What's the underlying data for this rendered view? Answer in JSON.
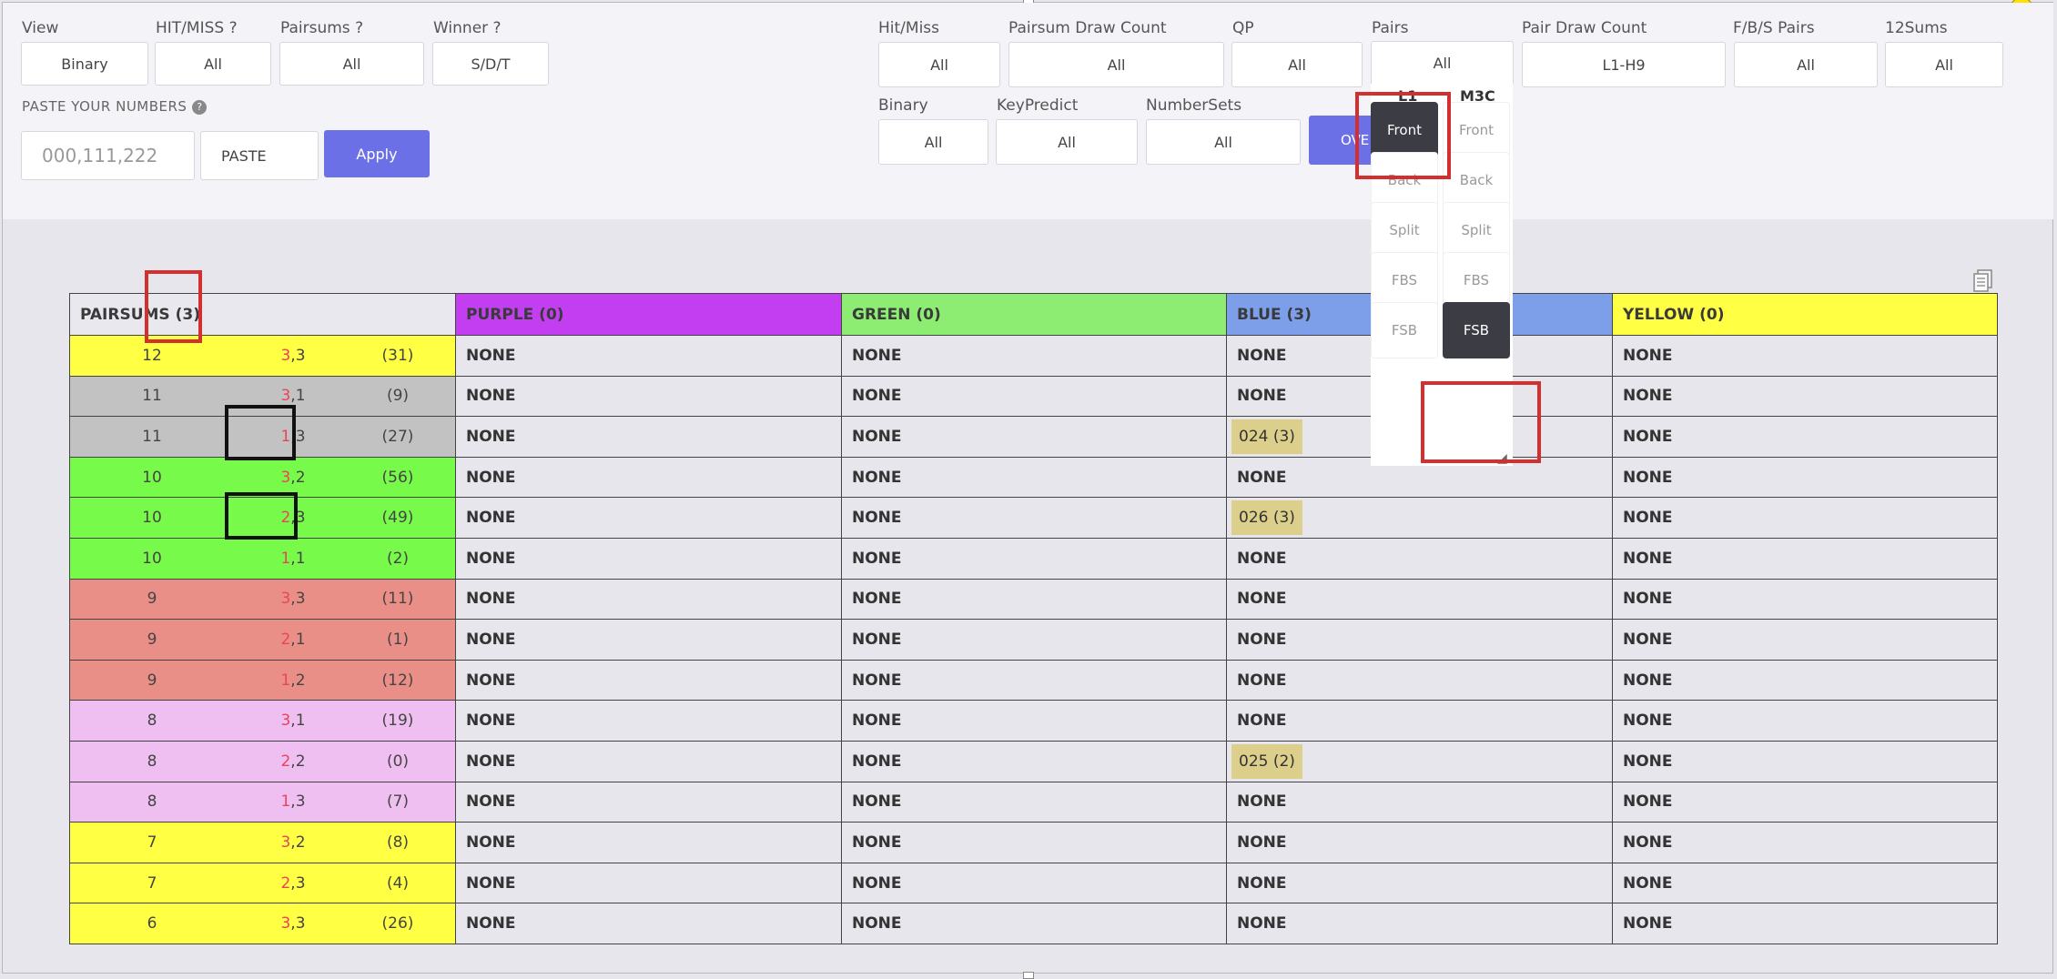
{
  "filters_left": [
    {
      "label": "View",
      "value": "Binary"
    },
    {
      "label": "HIT/MISS ?",
      "value": "All"
    },
    {
      "label": "Pairsums ?",
      "value": "All"
    },
    {
      "label": "Winner ?",
      "value": "S/D/T"
    }
  ],
  "paste": {
    "label": "PASTE YOUR NUMBERS",
    "help_icon": "question-circle-icon",
    "placeholder": "000,111,222",
    "paste_button": "PASTE",
    "apply_button": "Apply"
  },
  "filters_right": [
    {
      "label": "Hit/Miss",
      "value": "All"
    },
    {
      "label": "Pairsum Draw Count",
      "value": "All"
    },
    {
      "label": "QP",
      "value": "All"
    },
    {
      "label": "Pairs",
      "value": "All"
    },
    {
      "label": "Pair Draw Count",
      "value": "L1-H9"
    },
    {
      "label": "F/B/S Pairs",
      "value": "All"
    },
    {
      "label": "12Sums",
      "value": "All"
    }
  ],
  "filters_right2": [
    {
      "label": "Binary",
      "value": "All"
    },
    {
      "label": "KeyPredict",
      "value": "All"
    },
    {
      "label": "NumberSets",
      "value": "All"
    }
  ],
  "overlay_button": "OVE",
  "dropdown": {
    "col1_header": "L1",
    "col2_header": "M3C",
    "col1": [
      "Front",
      "Back",
      "Split",
      "FBS",
      "FSB"
    ],
    "col2": [
      "Front",
      "Back",
      "Split",
      "FBS",
      "FSB"
    ],
    "col1_selected": "Front",
    "col2_selected": "FSB"
  },
  "copy_icon": "copy-document-icon",
  "table": {
    "headers": [
      "PAIRSUMS (3)",
      "PURPLE (0)",
      "GREEN (0)",
      "BLUE (3)",
      "YELLOW (0)"
    ],
    "header_colors": [
      "#e8e8ee",
      "#c23ef0",
      "#8ded73",
      "#7d9fea",
      "#ffff44"
    ],
    "rows": [
      {
        "sum": "12",
        "d1": "3",
        "d2": "3",
        "count": "(31)",
        "color": "#ffff44",
        "purple": "NONE",
        "green": "NONE",
        "blue": "NONE",
        "yellow": "NONE"
      },
      {
        "sum": "11",
        "d1": "3",
        "d2": "1",
        "count": "(9)",
        "color": "#c2c2c2",
        "purple": "NONE",
        "green": "NONE",
        "blue": "NONE",
        "yellow": "NONE"
      },
      {
        "sum": "11",
        "d1": "1",
        "d2": "3",
        "count": "(27)",
        "color": "#c2c2c2",
        "purple": "NONE",
        "green": "NONE",
        "blue": "024 (3)",
        "yellow": "NONE"
      },
      {
        "sum": "10",
        "d1": "3",
        "d2": "2",
        "count": "(56)",
        "color": "#77fa4a",
        "purple": "NONE",
        "green": "NONE",
        "blue": "NONE",
        "yellow": "NONE"
      },
      {
        "sum": "10",
        "d1": "2",
        "d2": "3",
        "count": "(49)",
        "color": "#77fa4a",
        "purple": "NONE",
        "green": "NONE",
        "blue": "026 (3)",
        "yellow": "NONE"
      },
      {
        "sum": "10",
        "d1": "1",
        "d2": "1",
        "count": "(2)",
        "color": "#77fa4a",
        "purple": "NONE",
        "green": "NONE",
        "blue": "NONE",
        "yellow": "NONE"
      },
      {
        "sum": "9",
        "d1": "3",
        "d2": "3",
        "count": "(11)",
        "color": "#ea8f87",
        "purple": "NONE",
        "green": "NONE",
        "blue": "NONE",
        "yellow": "NONE"
      },
      {
        "sum": "9",
        "d1": "2",
        "d2": "1",
        "count": "(1)",
        "color": "#ea8f87",
        "purple": "NONE",
        "green": "NONE",
        "blue": "NONE",
        "yellow": "NONE"
      },
      {
        "sum": "9",
        "d1": "1",
        "d2": "2",
        "count": "(12)",
        "color": "#ea8f87",
        "purple": "NONE",
        "green": "NONE",
        "blue": "NONE",
        "yellow": "NONE"
      },
      {
        "sum": "8",
        "d1": "3",
        "d2": "1",
        "count": "(19)",
        "color": "#f0bff2",
        "purple": "NONE",
        "green": "NONE",
        "blue": "NONE",
        "yellow": "NONE"
      },
      {
        "sum": "8",
        "d1": "2",
        "d2": "2",
        "count": "(0)",
        "color": "#f0bff2",
        "purple": "NONE",
        "green": "NONE",
        "blue": "025 (2)",
        "yellow": "NONE"
      },
      {
        "sum": "8",
        "d1": "1",
        "d2": "3",
        "count": "(7)",
        "color": "#f0bff2",
        "purple": "NONE",
        "green": "NONE",
        "blue": "NONE",
        "yellow": "NONE"
      },
      {
        "sum": "7",
        "d1": "3",
        "d2": "2",
        "count": "(8)",
        "color": "#ffff44",
        "purple": "NONE",
        "green": "NONE",
        "blue": "NONE",
        "yellow": "NONE"
      },
      {
        "sum": "7",
        "d1": "2",
        "d2": "3",
        "count": "(4)",
        "color": "#ffff44",
        "purple": "NONE",
        "green": "NONE",
        "blue": "NONE",
        "yellow": "NONE"
      },
      {
        "sum": "6",
        "d1": "3",
        "d2": "3",
        "count": "(26)",
        "color": "#ffff44",
        "purple": "NONE",
        "green": "NONE",
        "blue": "NONE",
        "yellow": "NONE"
      }
    ]
  }
}
